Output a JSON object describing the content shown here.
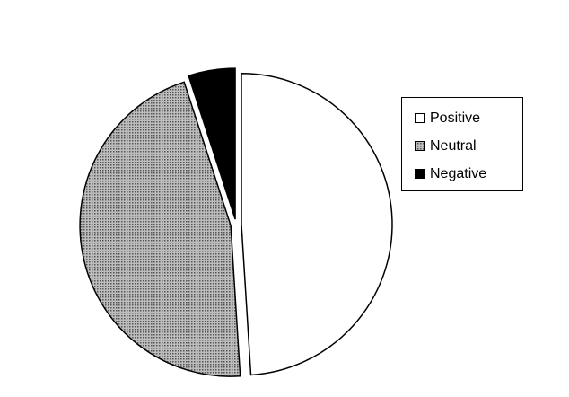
{
  "chart_data": {
    "type": "pie",
    "categories": [
      "Positive",
      "Neutral",
      "Negative"
    ],
    "values": [
      49,
      46,
      5
    ],
    "colors": [
      "#ffffff",
      "#bdbdbd",
      "#000000"
    ],
    "legend": "right"
  }
}
